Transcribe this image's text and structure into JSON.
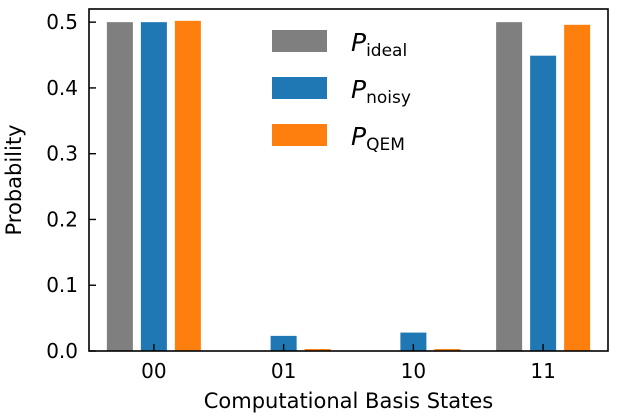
{
  "chart_data": {
    "type": "bar",
    "xlabel": "Computational Basis States",
    "ylabel": "Probability",
    "categories": [
      "00",
      "01",
      "10",
      "11"
    ],
    "ylim": [
      0,
      0.52
    ],
    "yticks": [
      "0.0",
      "0.1",
      "0.2",
      "0.3",
      "0.4",
      "0.5"
    ],
    "grid": false,
    "legend_position": "top-center",
    "series": [
      {
        "name_main": "P",
        "name_sub": "ideal",
        "color": "#7f7f7f",
        "values": [
          0.5,
          0.0,
          0.0,
          0.5
        ]
      },
      {
        "name_main": "P",
        "name_sub": "noisy",
        "color": "#1f77b4",
        "values": [
          0.5,
          0.023,
          0.028,
          0.449
        ]
      },
      {
        "name_main": "P",
        "name_sub": "QEM",
        "color": "#ff7f0e",
        "values": [
          0.502,
          0.003,
          0.003,
          0.496
        ]
      }
    ]
  }
}
